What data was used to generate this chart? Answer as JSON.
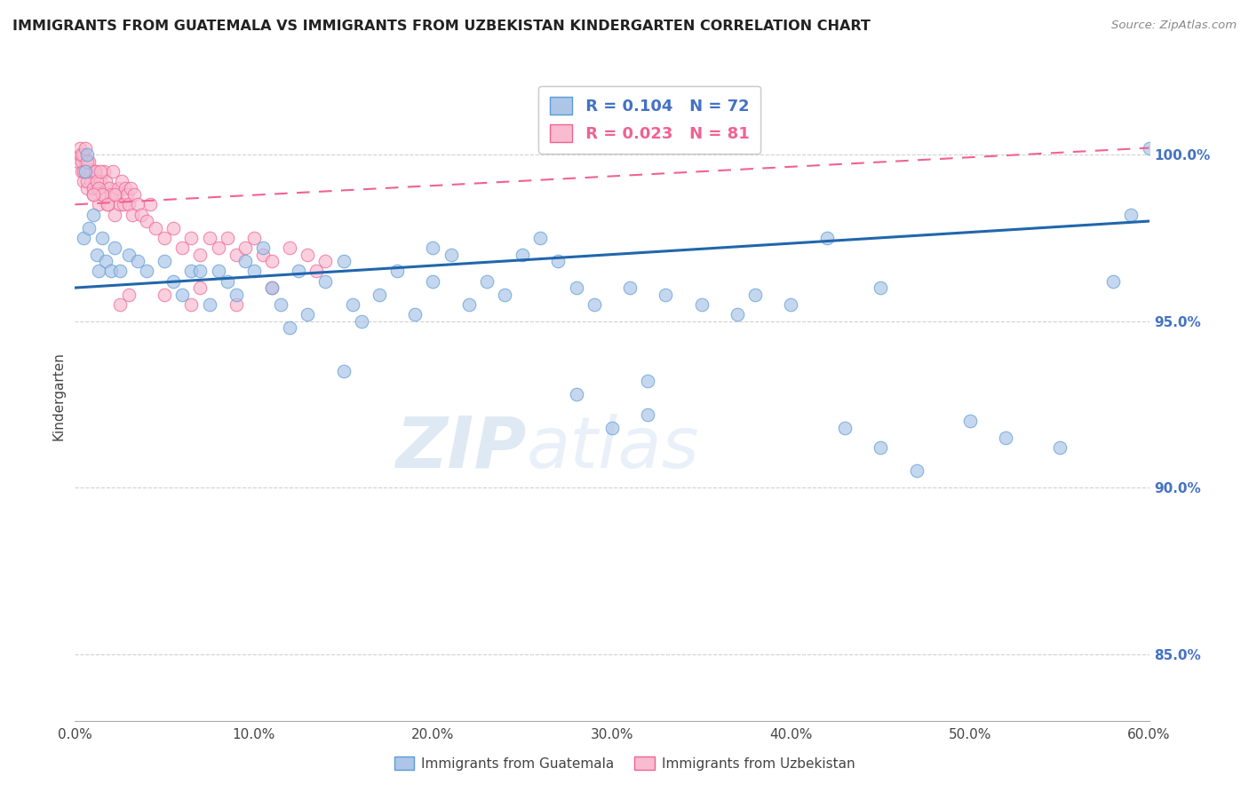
{
  "title": "IMMIGRANTS FROM GUATEMALA VS IMMIGRANTS FROM UZBEKISTAN KINDERGARTEN CORRELATION CHART",
  "source": "Source: ZipAtlas.com",
  "ylabel_left": "Kindergarten",
  "x_ticks": [
    0.0,
    10.0,
    20.0,
    30.0,
    40.0,
    50.0,
    60.0
  ],
  "x_tick_labels": [
    "0.0%",
    "10.0%",
    "20.0%",
    "30.0%",
    "40.0%",
    "50.0%",
    "60.0%"
  ],
  "y_ticks": [
    85.0,
    90.0,
    95.0,
    100.0
  ],
  "y_tick_labels": [
    "85.0%",
    "90.0%",
    "95.0%",
    "100.0%"
  ],
  "xlim": [
    0.0,
    60.0
  ],
  "ylim": [
    83.0,
    102.5
  ],
  "guatemala_color_edge": "#5b9bd5",
  "guatemala_color_fill": "#adc6e8",
  "uzbekistan_color_edge": "#f06292",
  "uzbekistan_color_fill": "#f8bbd0",
  "trendline_guatemala_color": "#2166ac",
  "trendline_uzbekistan_color": "#f06292",
  "R_guatemala": 0.104,
  "N_guatemala": 72,
  "R_uzbekistan": 0.023,
  "N_uzbekistan": 81,
  "watermark_zip": "ZIP",
  "watermark_atlas": "atlas",
  "guatemala_x": [
    0.5,
    0.6,
    0.7,
    0.8,
    1.0,
    1.2,
    1.3,
    1.5,
    1.7,
    2.0,
    2.2,
    2.5,
    3.0,
    3.5,
    4.0,
    5.0,
    5.5,
    6.0,
    6.5,
    7.0,
    7.5,
    8.0,
    8.5,
    9.0,
    9.5,
    10.0,
    10.5,
    11.0,
    11.5,
    12.0,
    12.5,
    13.0,
    14.0,
    15.0,
    15.5,
    16.0,
    17.0,
    18.0,
    19.0,
    20.0,
    21.0,
    22.0,
    23.0,
    24.0,
    25.0,
    26.0,
    27.0,
    28.0,
    29.0,
    30.0,
    31.0,
    32.0,
    33.0,
    35.0,
    37.0,
    38.0,
    40.0,
    42.0,
    43.0,
    45.0,
    47.0,
    50.0,
    52.0,
    55.0,
    58.0,
    59.0,
    60.0,
    45.0,
    32.0,
    28.0,
    20.0,
    15.0
  ],
  "guatemala_y": [
    97.5,
    99.5,
    100.0,
    97.8,
    98.2,
    97.0,
    96.5,
    97.5,
    96.8,
    96.5,
    97.2,
    96.5,
    97.0,
    96.8,
    96.5,
    96.8,
    96.2,
    95.8,
    96.5,
    96.5,
    95.5,
    96.5,
    96.2,
    95.8,
    96.8,
    96.5,
    97.2,
    96.0,
    95.5,
    94.8,
    96.5,
    95.2,
    96.2,
    96.8,
    95.5,
    95.0,
    95.8,
    96.5,
    95.2,
    97.2,
    97.0,
    95.5,
    96.2,
    95.8,
    97.0,
    97.5,
    96.8,
    92.8,
    95.5,
    91.8,
    96.0,
    92.2,
    95.8,
    95.5,
    95.2,
    95.8,
    95.5,
    97.5,
    91.8,
    91.2,
    90.5,
    92.0,
    91.5,
    91.2,
    96.2,
    98.2,
    100.2,
    96.0,
    93.2,
    96.0,
    96.2,
    93.5
  ],
  "uzbekistan_x": [
    0.2,
    0.3,
    0.4,
    0.5,
    0.6,
    0.7,
    0.8,
    0.9,
    1.0,
    1.1,
    1.2,
    1.3,
    1.4,
    1.5,
    1.6,
    1.7,
    1.8,
    1.9,
    2.0,
    2.1,
    2.2,
    2.3,
    2.4,
    2.5,
    2.6,
    2.7,
    2.8,
    2.9,
    3.0,
    3.1,
    3.2,
    3.3,
    3.5,
    3.7,
    4.0,
    4.2,
    4.5,
    5.0,
    5.5,
    6.0,
    6.5,
    7.0,
    7.5,
    8.0,
    8.5,
    9.0,
    9.5,
    10.0,
    10.5,
    11.0,
    12.0,
    13.0,
    14.0,
    0.3,
    0.4,
    0.5,
    0.6,
    0.7,
    0.8,
    0.9,
    1.0,
    1.1,
    1.2,
    1.3,
    1.4,
    1.5,
    0.4,
    0.5,
    0.6,
    0.7,
    2.5,
    3.0,
    5.0,
    7.0,
    9.0,
    11.0,
    13.5,
    1.0,
    1.8,
    2.2,
    6.5
  ],
  "uzbekistan_y": [
    99.8,
    100.0,
    99.5,
    99.2,
    99.8,
    99.0,
    99.5,
    99.2,
    98.8,
    99.5,
    99.0,
    98.5,
    99.2,
    98.8,
    99.5,
    99.2,
    98.5,
    99.0,
    98.8,
    99.5,
    98.2,
    98.8,
    99.0,
    98.5,
    99.2,
    98.5,
    99.0,
    98.8,
    98.5,
    99.0,
    98.2,
    98.8,
    98.5,
    98.2,
    98.0,
    98.5,
    97.8,
    97.5,
    97.8,
    97.2,
    97.5,
    97.0,
    97.5,
    97.2,
    97.5,
    97.0,
    97.2,
    97.5,
    97.0,
    96.8,
    97.2,
    97.0,
    96.8,
    100.2,
    99.8,
    100.0,
    99.5,
    99.2,
    99.8,
    99.5,
    99.0,
    99.5,
    99.2,
    99.0,
    99.5,
    98.8,
    100.0,
    99.5,
    100.2,
    99.8,
    95.5,
    95.8,
    95.8,
    96.0,
    95.5,
    96.0,
    96.5,
    98.8,
    98.5,
    98.8,
    95.5
  ]
}
